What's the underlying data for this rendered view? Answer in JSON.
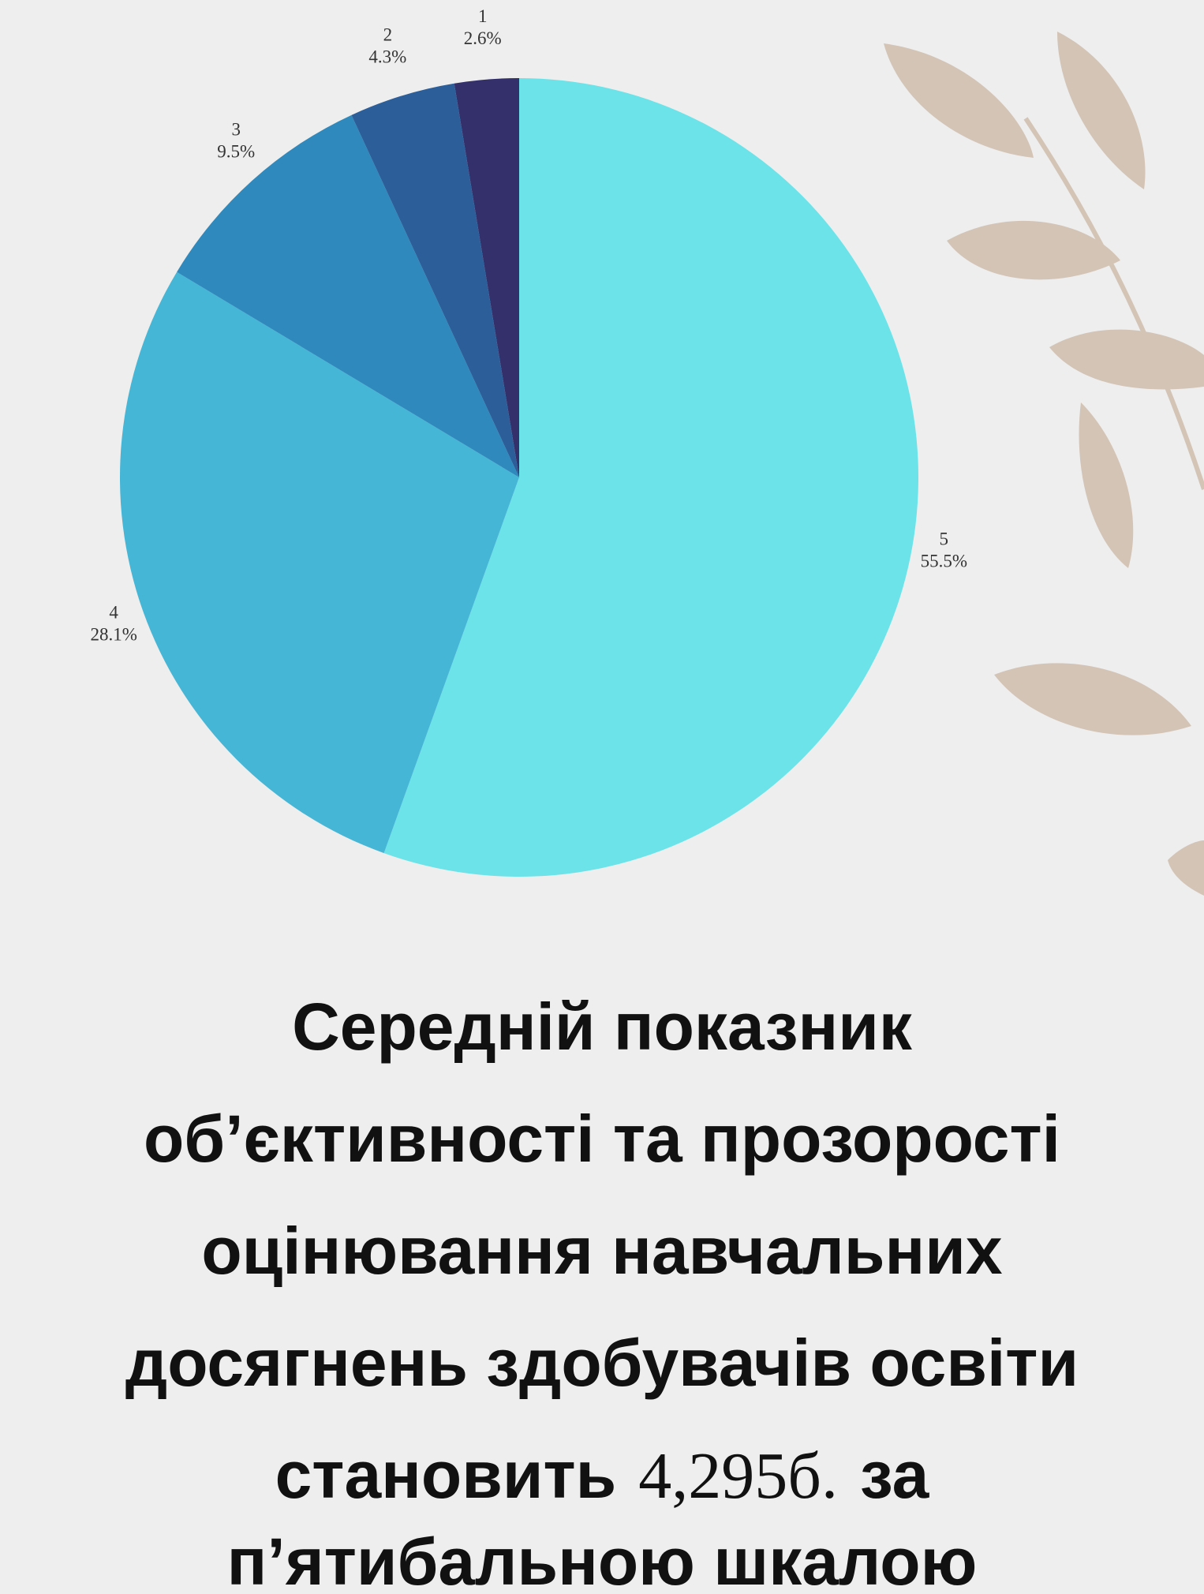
{
  "chart_data": {
    "type": "pie",
    "categories": [
      "5",
      "4",
      "3",
      "2",
      "1"
    ],
    "values": [
      55.5,
      28.1,
      9.5,
      4.3,
      2.6
    ],
    "value_labels": [
      "55.5%",
      "28.1%",
      "9.5%",
      "4.3%",
      "2.6%"
    ],
    "colors": [
      "#6be3e8",
      "#45b6d6",
      "#2f89bc",
      "#2c5e9a",
      "#33306b"
    ]
  },
  "caption": {
    "lines": [
      "Середній показник",
      "об’єктивності та прозорості",
      "оцінювання навчальних",
      "досягнень здобувачів освіти"
    ],
    "mean_prefix": "становить",
    "mean_value": "4,295б.",
    "mean_suffix": "за",
    "last_line": "п’ятибальною шкалою"
  }
}
